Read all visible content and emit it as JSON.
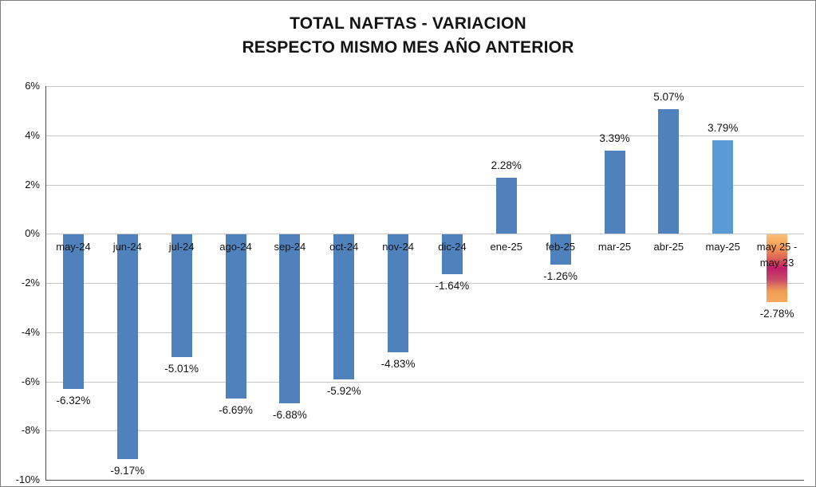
{
  "title": "TOTAL NAFTAS - VARIACION\nRESPECTO MISMO MES AÑO ANTERIOR",
  "chart_data": {
    "type": "bar",
    "title": "TOTAL NAFTAS - VARIACION\nRESPECTO MISMO MES AÑO ANTERIOR",
    "categories": [
      "may-24",
      "jun-24",
      "jul-24",
      "ago-24",
      "sep-24",
      "oct-24",
      "nov-24",
      "dic-24",
      "ene-25",
      "feb-25",
      "mar-25",
      "abr-25",
      "may-25",
      "may 25 -\nmay 23"
    ],
    "values": [
      -6.32,
      -9.17,
      -5.01,
      -6.69,
      -6.88,
      -5.92,
      -4.83,
      -1.64,
      2.28,
      -1.26,
      3.39,
      5.07,
      3.79,
      -2.78
    ],
    "data_labels": [
      "-6.32%",
      "-9.17%",
      "-5.01%",
      "-6.69%",
      "-6.88%",
      "-5.92%",
      "-4.83%",
      "-1.64%",
      "2.28%",
      "-1.26%",
      "3.39%",
      "5.07%",
      "3.79%",
      "-2.78%"
    ],
    "ylim": [
      -10,
      6
    ],
    "ytick_step": 2,
    "ytick_labels": [
      "6%",
      "4%",
      "2%",
      "0%",
      "-2%",
      "-4%",
      "-6%",
      "-8%",
      "-10%"
    ],
    "grid": true,
    "legend": "none",
    "xlabel": "",
    "ylabel": "",
    "bar_colors": [
      "#4f81bd",
      "#4f81bd",
      "#4f81bd",
      "#4f81bd",
      "#4f81bd",
      "#4f81bd",
      "#4f81bd",
      "#4f81bd",
      "#4f81bd",
      "#4f81bd",
      "#4f81bd",
      "#4f81bd",
      "#5b9bd5",
      "gradient"
    ],
    "gradient_stops": [
      "#fbbf79",
      "#f5a051",
      "#e06a55",
      "#c01e68",
      "#c84a67",
      "#ef9c55",
      "#f7aa5e"
    ],
    "gridline_color": "#c6c6c6",
    "axis_color": "#4d4d4d",
    "text_color": "#141414"
  }
}
